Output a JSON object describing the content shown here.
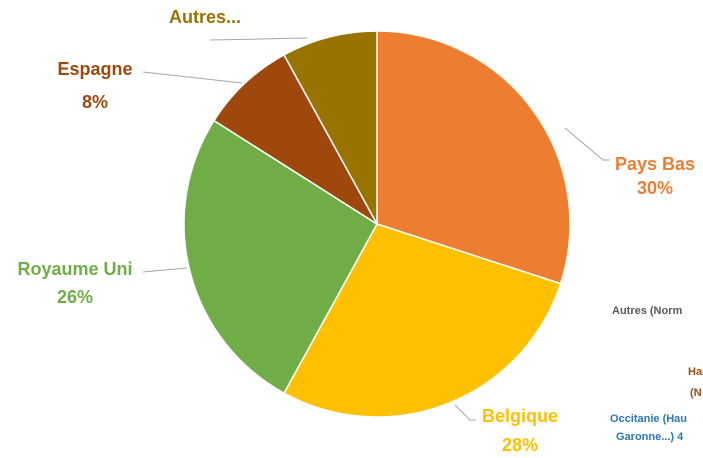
{
  "chart_data": {
    "type": "pie",
    "categories": [
      "Pays Bas",
      "Belgique",
      "Royaume Uni",
      "Espagne",
      "Autres..."
    ],
    "values": [
      30,
      28,
      26,
      8,
      8
    ],
    "value_labels": [
      "30%",
      "28%",
      "26%",
      "8%",
      null
    ],
    "colors": [
      "#ED7D31",
      "#FFC000",
      "#70AD47",
      "#9E480E",
      "#997300"
    ],
    "annotations": [
      "Autres (Norm",
      "Hau",
      "(N",
      "Occitanie (Hau",
      "Garonne...)  4"
    ]
  }
}
